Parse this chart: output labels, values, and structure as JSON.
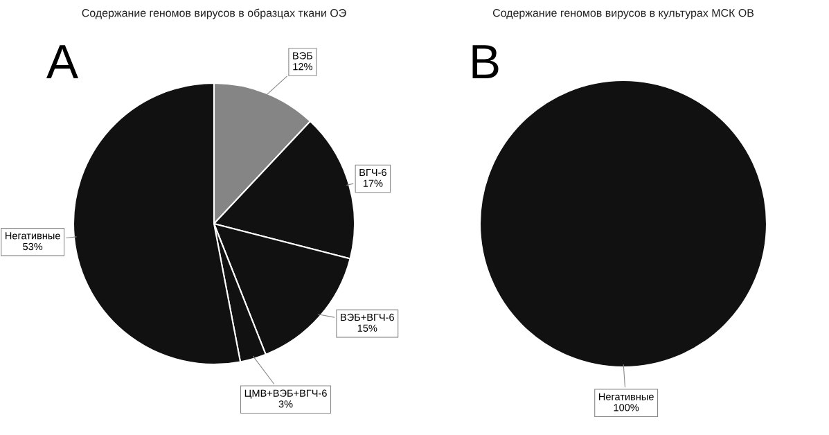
{
  "chart_data": [
    {
      "type": "pie",
      "title": "Содержание геномов вирусов в образцах ткани ОЭ",
      "annotations": [
        "A"
      ],
      "categories": [
        "ВЭБ",
        "ВГЧ-6",
        "ВЭБ+ВГЧ-6",
        "ЦМВ+ВЭБ+ВГЧ-6",
        "Негативные"
      ],
      "values": [
        12,
        17,
        15,
        3,
        53
      ],
      "value_labels": [
        "12%",
        "17%",
        "15%",
        "3%",
        "53%"
      ],
      "colors": [
        "#858585",
        "#111111",
        "#111111",
        "#111111",
        "#111111"
      ]
    },
    {
      "type": "pie",
      "title": "Содержание геномов вирусов в культурах МСК ОВ",
      "annotations": [
        "B"
      ],
      "categories": [
        "Негативные"
      ],
      "values": [
        100
      ],
      "value_labels": [
        "100%"
      ],
      "colors": [
        "#111111"
      ]
    }
  ]
}
